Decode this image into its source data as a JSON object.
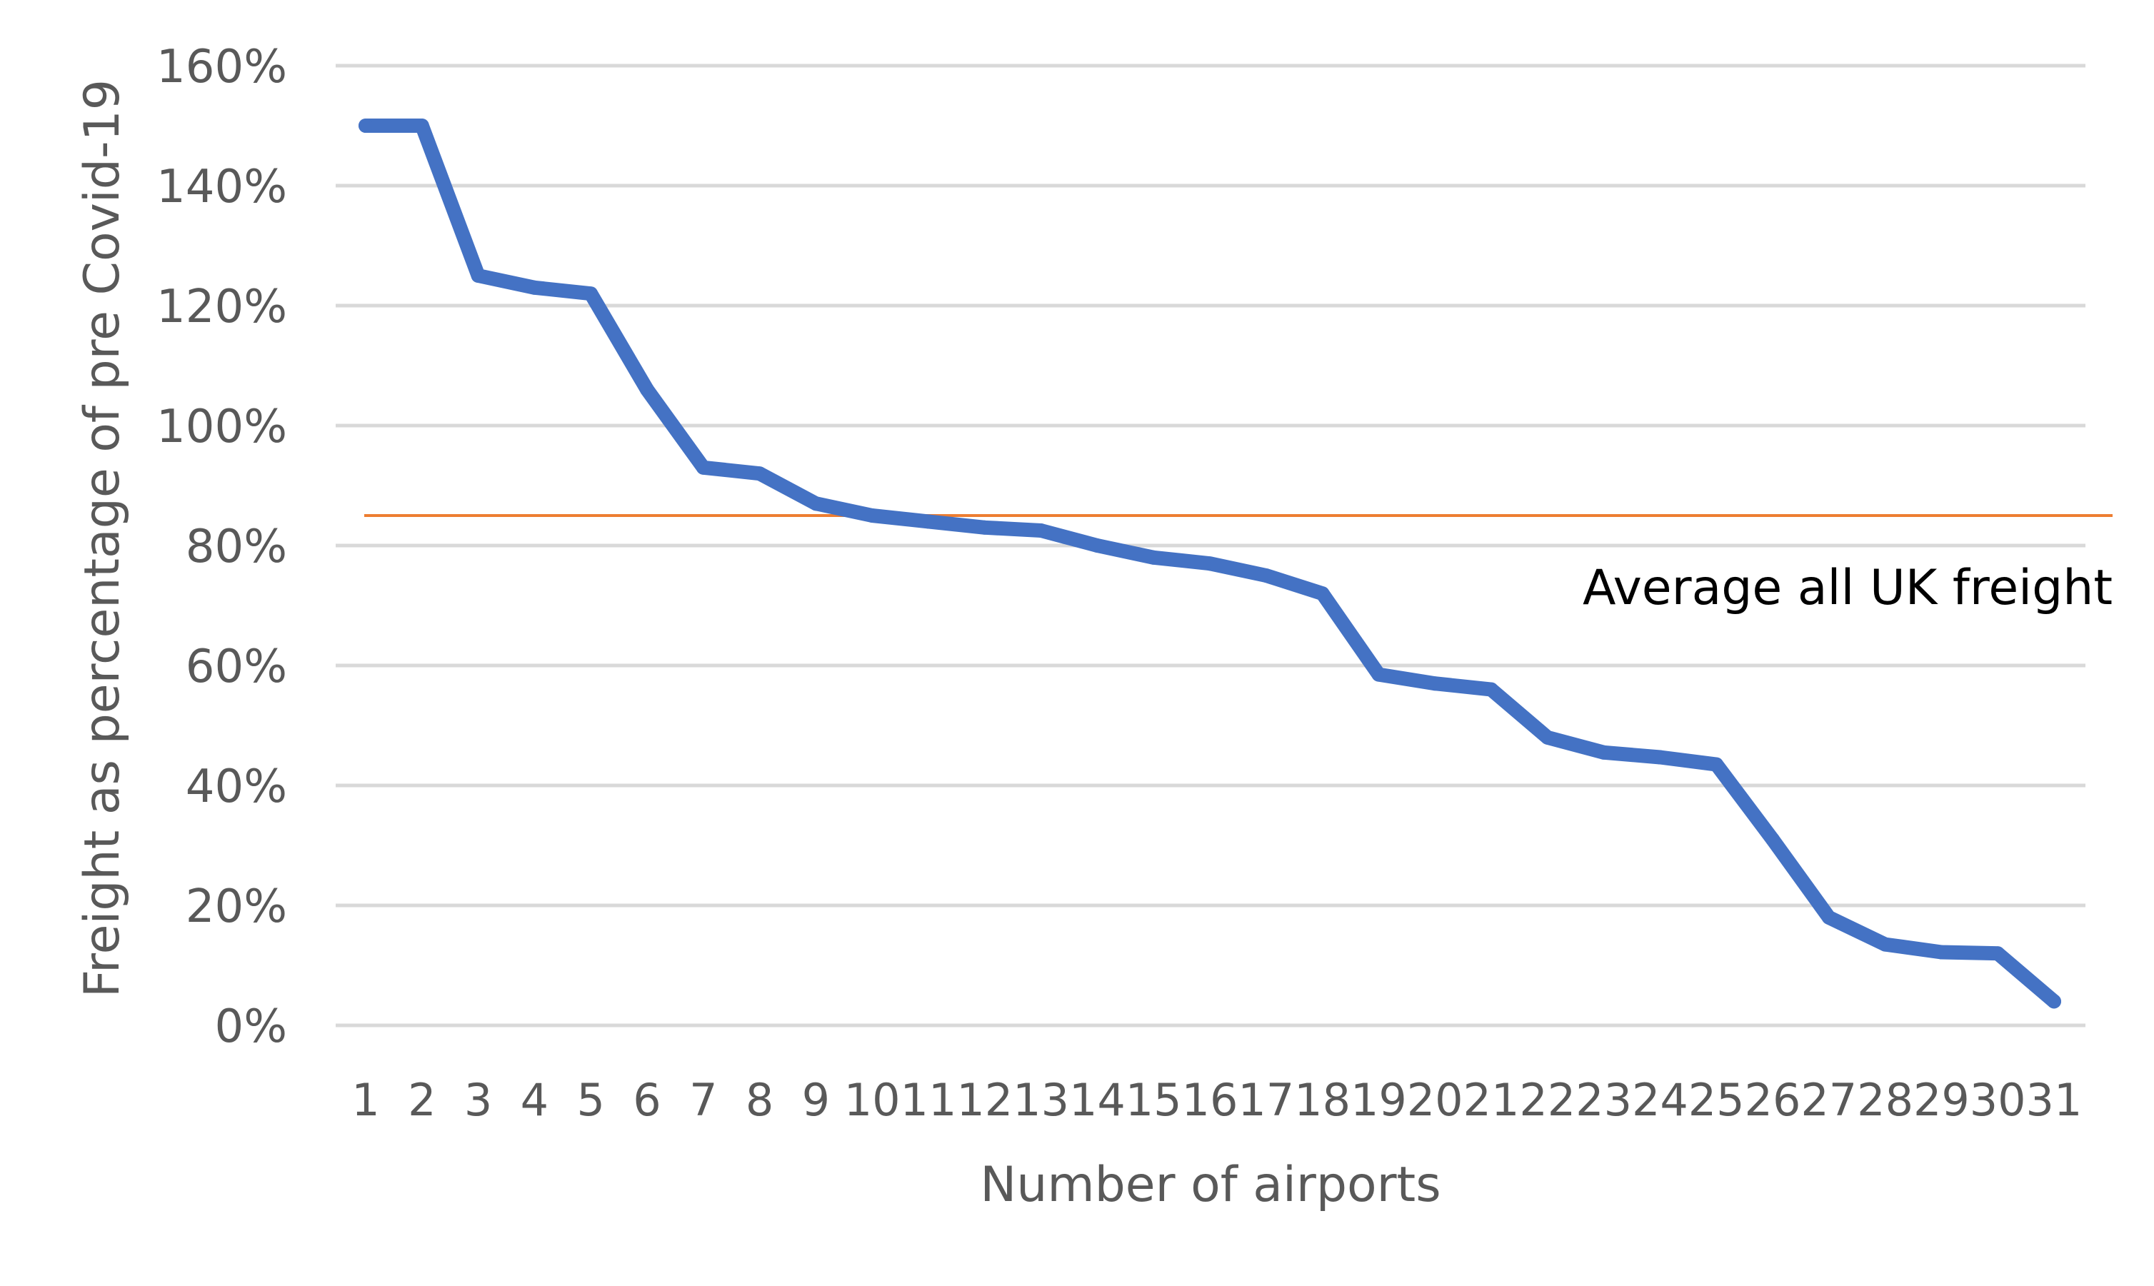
{
  "chart_data": {
    "type": "line",
    "title": "",
    "xlabel": "Number of airports",
    "ylabel": "Freight as percentage of pre Covid-19",
    "ylim": [
      0,
      1.6
    ],
    "y_ticks": [
      0,
      0.2,
      0.4,
      0.6,
      0.8,
      1.0,
      1.2,
      1.4,
      1.6
    ],
    "y_tick_labels": [
      "0%",
      "20%",
      "40%",
      "60%",
      "80%",
      "100%",
      "120%",
      "140%",
      "160%"
    ],
    "x": [
      1,
      2,
      3,
      4,
      5,
      6,
      7,
      8,
      9,
      10,
      11,
      12,
      13,
      14,
      15,
      16,
      17,
      18,
      19,
      20,
      21,
      22,
      23,
      24,
      25,
      26,
      27,
      28,
      29,
      30,
      31
    ],
    "x_tick_labels": [
      "1",
      "2",
      "3",
      "4",
      "5",
      "6",
      "7",
      "8",
      "9",
      "10",
      "11",
      "12",
      "13",
      "14",
      "15",
      "16",
      "17",
      "18",
      "19",
      "20",
      "21",
      "22",
      "23",
      "24",
      "25",
      "26",
      "27",
      "28",
      "29",
      "30",
      "31"
    ],
    "grid": true,
    "series": [
      {
        "values": [
          1.5,
          1.5,
          1.25,
          1.23,
          1.22,
          1.06,
          0.93,
          0.92,
          0.87,
          0.85,
          0.84,
          0.83,
          0.825,
          0.8,
          0.78,
          0.77,
          0.75,
          0.72,
          0.585,
          0.57,
          0.56,
          0.48,
          0.455,
          0.447,
          0.435,
          0.31,
          0.18,
          0.135,
          0.122,
          0.12,
          0.04
        ],
        "color": "#4472C4"
      }
    ],
    "reference_line": {
      "value": 0.85,
      "label": "Average all UK freight",
      "color": "#ED7D31"
    },
    "colors": {
      "grid": "#D9D9D9",
      "tick_text": "#595959",
      "axis_title": "#595959",
      "annotation_text": "#000000"
    }
  }
}
